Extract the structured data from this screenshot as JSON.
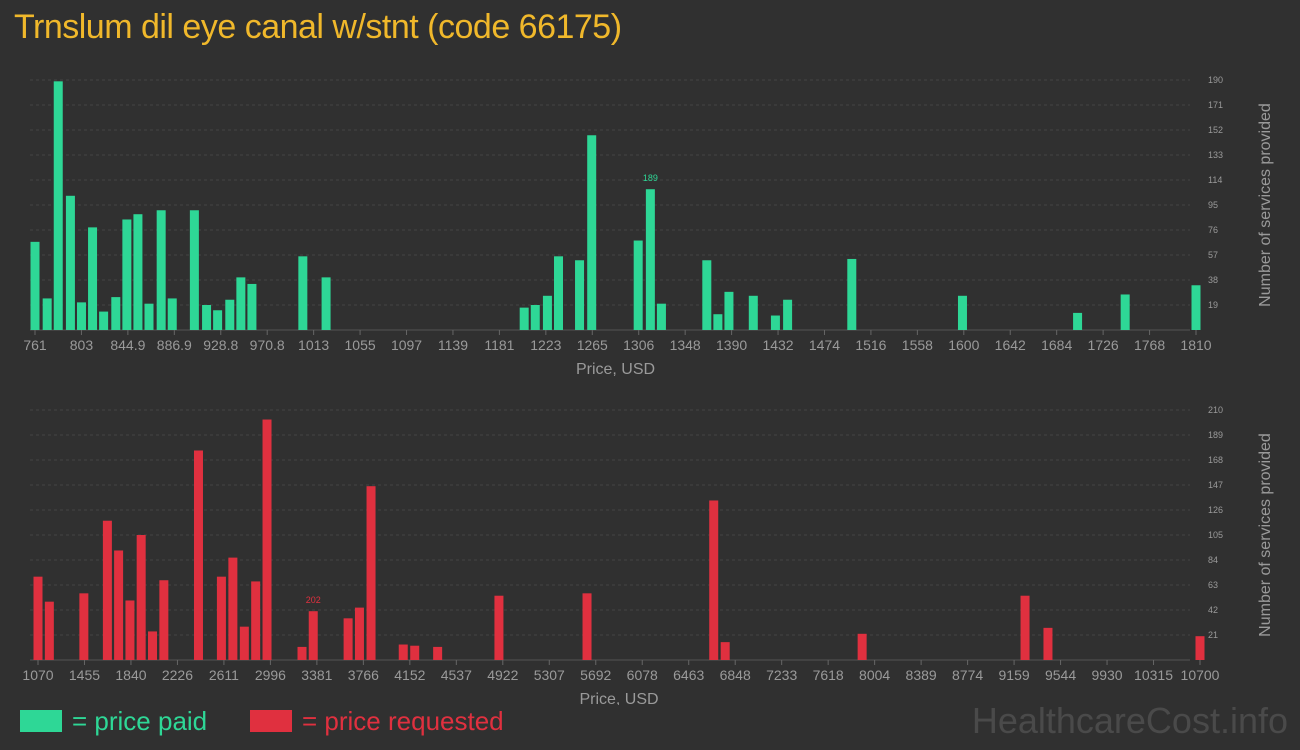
{
  "title": "Trnslum dil eye canal w/stnt (code 66175)",
  "legend": {
    "paid": "= price paid",
    "requested": "= price requested"
  },
  "watermark": "HealthcareCost.info",
  "colors": {
    "background": "#303030",
    "title": "#f0b82b",
    "paid": "#2ed796",
    "requested": "#e0303f",
    "axis_text": "#9a9a9a",
    "grid": "#444444"
  },
  "chart_data": [
    {
      "type": "bar",
      "series_name": "price paid",
      "xlabel": "Price, USD",
      "ylabel": "Number of services provided",
      "ylim": [
        0,
        190
      ],
      "ytick_labels": [
        "19",
        "38",
        "57",
        "76",
        "95",
        "114",
        "133",
        "152",
        "171",
        "190"
      ],
      "xlim": [
        761,
        1810
      ],
      "xtick_labels": [
        "761",
        "803",
        "844.9",
        "886.9",
        "928.8",
        "970.8",
        "1013",
        "1055",
        "1097",
        "1139",
        "1181",
        "1223",
        "1265",
        "1306",
        "1348",
        "1390",
        "1432",
        "1474",
        "1516",
        "1558",
        "1600",
        "1642",
        "1684",
        "1726",
        "1768",
        "1810"
      ],
      "peak_label": "189",
      "bars": [
        {
          "x": 761,
          "y": 67
        },
        {
          "x": 772,
          "y": 24
        },
        {
          "x": 782,
          "y": 189
        },
        {
          "x": 793,
          "y": 102
        },
        {
          "x": 803,
          "y": 21
        },
        {
          "x": 813,
          "y": 78
        },
        {
          "x": 823,
          "y": 14
        },
        {
          "x": 834,
          "y": 25
        },
        {
          "x": 844,
          "y": 84
        },
        {
          "x": 854,
          "y": 88
        },
        {
          "x": 864,
          "y": 20
        },
        {
          "x": 875,
          "y": 91
        },
        {
          "x": 885,
          "y": 24
        },
        {
          "x": 905,
          "y": 91
        },
        {
          "x": 916,
          "y": 19
        },
        {
          "x": 926,
          "y": 15
        },
        {
          "x": 937,
          "y": 23
        },
        {
          "x": 947,
          "y": 40
        },
        {
          "x": 957,
          "y": 35
        },
        {
          "x": 1003,
          "y": 56
        },
        {
          "x": 1024,
          "y": 40
        },
        {
          "x": 1203,
          "y": 17
        },
        {
          "x": 1213,
          "y": 19
        },
        {
          "x": 1224,
          "y": 26
        },
        {
          "x": 1234,
          "y": 56
        },
        {
          "x": 1253,
          "y": 53
        },
        {
          "x": 1264,
          "y": 148
        },
        {
          "x": 1306,
          "y": 68
        },
        {
          "x": 1317,
          "y": 107
        },
        {
          "x": 1327,
          "y": 20
        },
        {
          "x": 1368,
          "y": 53
        },
        {
          "x": 1378,
          "y": 12
        },
        {
          "x": 1388,
          "y": 29
        },
        {
          "x": 1410,
          "y": 26
        },
        {
          "x": 1430,
          "y": 11
        },
        {
          "x": 1441,
          "y": 23
        },
        {
          "x": 1499,
          "y": 54
        },
        {
          "x": 1599,
          "y": 26
        },
        {
          "x": 1703,
          "y": 13
        },
        {
          "x": 1746,
          "y": 27
        },
        {
          "x": 1810,
          "y": 34
        }
      ]
    },
    {
      "type": "bar",
      "series_name": "price requested",
      "xlabel": "Price, USD",
      "ylabel": "Number of services provided",
      "ylim": [
        0,
        210
      ],
      "ytick_labels": [
        "21",
        "42",
        "63",
        "84",
        "105",
        "126",
        "147",
        "168",
        "189",
        "210"
      ],
      "xlim": [
        1070,
        10700
      ],
      "xtick_labels": [
        "1070",
        "1455",
        "1840",
        "2226",
        "2611",
        "2996",
        "3381",
        "3766",
        "4152",
        "4537",
        "4922",
        "5307",
        "5692",
        "6078",
        "6463",
        "6848",
        "7233",
        "7618",
        "8004",
        "8389",
        "8774",
        "9159",
        "9544",
        "9930",
        "10315",
        "10700"
      ],
      "peak_label": "202",
      "bars": [
        {
          "x": 1070,
          "y": 70
        },
        {
          "x": 1164,
          "y": 49
        },
        {
          "x": 1450,
          "y": 56
        },
        {
          "x": 1645,
          "y": 117
        },
        {
          "x": 1738,
          "y": 92
        },
        {
          "x": 1832,
          "y": 50
        },
        {
          "x": 1925,
          "y": 105
        },
        {
          "x": 2019,
          "y": 24
        },
        {
          "x": 2113,
          "y": 67
        },
        {
          "x": 2400,
          "y": 176
        },
        {
          "x": 2590,
          "y": 70
        },
        {
          "x": 2685,
          "y": 86
        },
        {
          "x": 2780,
          "y": 28
        },
        {
          "x": 2874,
          "y": 66
        },
        {
          "x": 2968,
          "y": 202
        },
        {
          "x": 3258,
          "y": 11
        },
        {
          "x": 3351,
          "y": 41
        },
        {
          "x": 3640,
          "y": 35
        },
        {
          "x": 3734,
          "y": 44
        },
        {
          "x": 3830,
          "y": 146
        },
        {
          "x": 4097,
          "y": 13
        },
        {
          "x": 4192,
          "y": 12
        },
        {
          "x": 4382,
          "y": 11
        },
        {
          "x": 4890,
          "y": 54
        },
        {
          "x": 5620,
          "y": 56
        },
        {
          "x": 6670,
          "y": 134
        },
        {
          "x": 6765,
          "y": 15
        },
        {
          "x": 7900,
          "y": 22
        },
        {
          "x": 9250,
          "y": 54
        },
        {
          "x": 9440,
          "y": 27
        },
        {
          "x": 10700,
          "y": 20
        }
      ]
    }
  ]
}
